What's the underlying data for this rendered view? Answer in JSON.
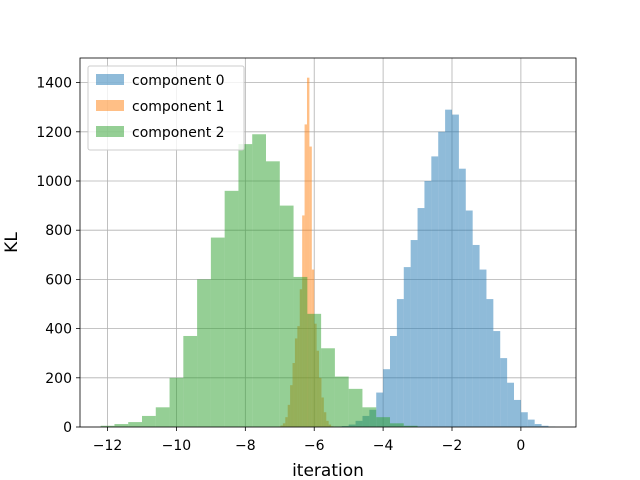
{
  "chart_data": {
    "type": "bar",
    "subtype": "overlaid histogram",
    "title": "",
    "xlabel": "iteration",
    "ylabel": "KL",
    "xlim": [
      -12.8,
      1.6
    ],
    "ylim": [
      0,
      1500
    ],
    "xticks": [
      -12,
      -10,
      -8,
      -6,
      -4,
      -2,
      0
    ],
    "xtick_labels": [
      "−12",
      "−10",
      "−8",
      "−6",
      "−4",
      "−2",
      "0"
    ],
    "yticks": [
      0,
      200,
      400,
      600,
      800,
      1000,
      1200,
      1400
    ],
    "ytick_labels": [
      "0",
      "200",
      "400",
      "600",
      "800",
      "1000",
      "1200",
      "1400"
    ],
    "grid": true,
    "legend_position": "upper left",
    "series": [
      {
        "name": "component 0",
        "color": "#1f77b4",
        "alpha": 0.5,
        "bin_start": -5.4,
        "bin_width": 0.2,
        "counts": [
          2,
          4,
          10,
          25,
          45,
          70,
          140,
          235,
          370,
          520,
          650,
          760,
          890,
          1000,
          1100,
          1200,
          1290,
          1270,
          1050,
          880,
          740,
          640,
          520,
          390,
          280,
          180,
          110,
          60,
          30,
          12,
          5,
          2
        ]
      },
      {
        "name": "component 1",
        "color": "#ff7f0e",
        "alpha": 0.5,
        "bin_start": -7.05,
        "bin_width": 0.07,
        "counts": [
          2,
          6,
          15,
          40,
          90,
          170,
          260,
          360,
          410,
          560,
          860,
          1230,
          1420,
          1140,
          640,
          420,
          310,
          200,
          120,
          60,
          25,
          10,
          3
        ]
      },
      {
        "name": "component 2",
        "color": "#2ca02c",
        "alpha": 0.5,
        "bin_start": -12.2,
        "bin_width": 0.4,
        "counts": [
          5,
          12,
          20,
          45,
          80,
          200,
          370,
          600,
          770,
          960,
          1150,
          1190,
          1080,
          900,
          610,
          460,
          320,
          205,
          155,
          80,
          40,
          15,
          5
        ]
      }
    ]
  }
}
